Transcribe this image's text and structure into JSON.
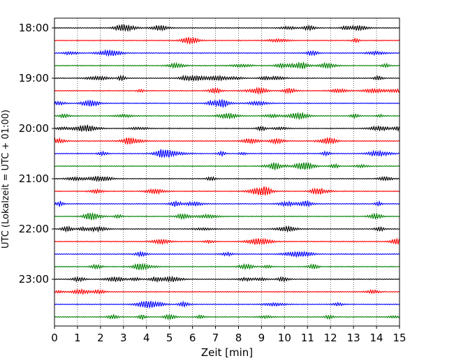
{
  "chart_data": {
    "type": "line",
    "title": "",
    "xlabel": "Zeit  [min]",
    "ylabel": "UTC (Lokalzeit = UTC + 01:00)",
    "xlim": [
      0,
      15
    ],
    "x_ticks": [
      "0",
      "1",
      "2",
      "3",
      "4",
      "5",
      "6",
      "7",
      "8",
      "9",
      "10",
      "11",
      "12",
      "13",
      "14",
      "15"
    ],
    "y_tick_labels": [
      "18:00",
      "19:00",
      "20:00",
      "21:00",
      "22:00",
      "23:00"
    ],
    "trace_start": "18:00",
    "trace_end": "23:45",
    "trace_interval_min": 15,
    "trace_count": 24,
    "trace_colors": [
      "#000000",
      "#ff0000",
      "#0000ff",
      "#008000"
    ],
    "grid": "vertical dotted lines at each minute"
  }
}
